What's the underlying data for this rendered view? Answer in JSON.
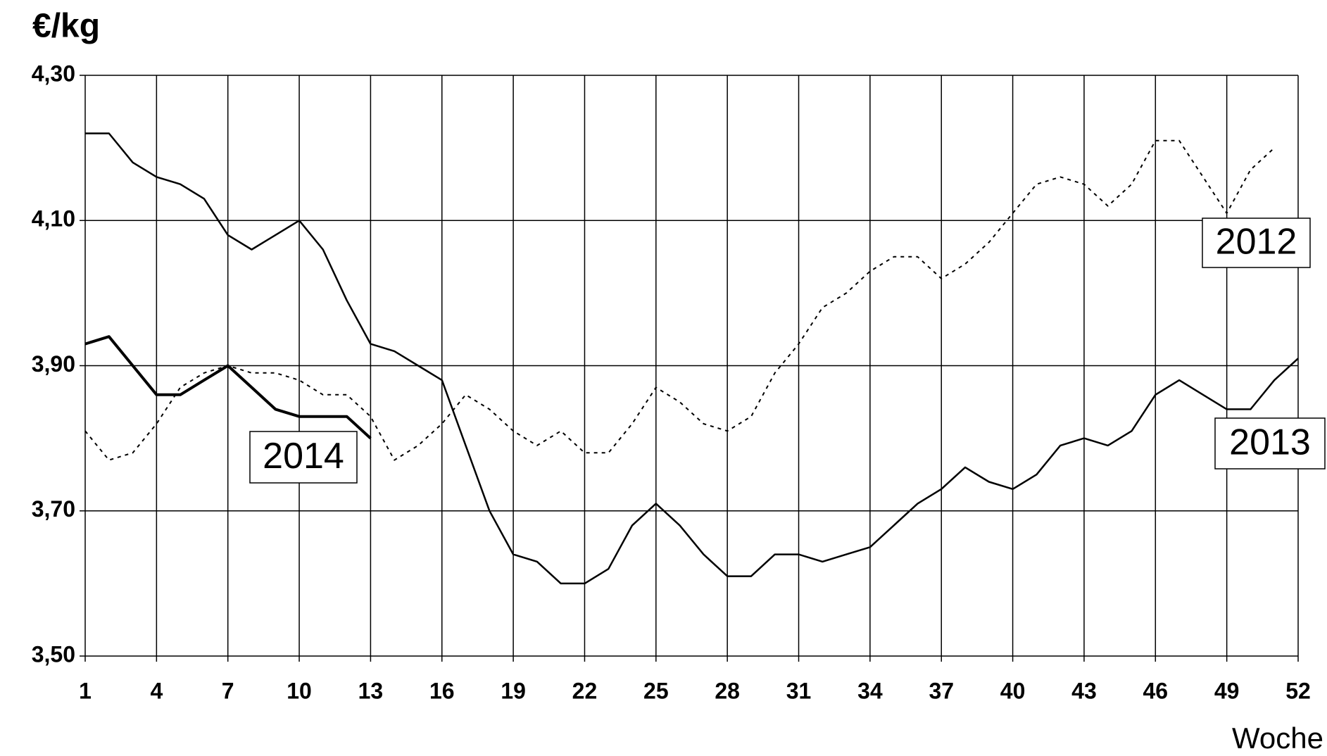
{
  "chart_data": {
    "type": "line",
    "ylabel": "€/kg",
    "xlabel": "Woche",
    "x": [
      1,
      2,
      3,
      4,
      5,
      6,
      7,
      8,
      9,
      10,
      11,
      12,
      13,
      14,
      15,
      16,
      17,
      18,
      19,
      20,
      21,
      22,
      23,
      24,
      25,
      26,
      27,
      28,
      29,
      30,
      31,
      32,
      33,
      34,
      35,
      36,
      37,
      38,
      39,
      40,
      41,
      42,
      43,
      44,
      45,
      46,
      47,
      48,
      49,
      50,
      51,
      52
    ],
    "xlim": [
      1,
      52
    ],
    "xticks": [
      1,
      4,
      7,
      10,
      13,
      16,
      19,
      22,
      25,
      28,
      31,
      34,
      37,
      40,
      43,
      46,
      49,
      52
    ],
    "ylim": [
      3.5,
      4.3
    ],
    "yticks": [
      {
        "value": 3.5,
        "label": "3,50"
      },
      {
        "value": 3.7,
        "label": "3,70"
      },
      {
        "value": 3.9,
        "label": "3,90"
      },
      {
        "value": 4.1,
        "label": "4,10"
      },
      {
        "value": 4.3,
        "label": "4,30"
      }
    ],
    "grid": true,
    "series": [
      {
        "name": "2012",
        "color": "#000000",
        "style": "dotted",
        "values": [
          3.81,
          3.77,
          3.78,
          3.82,
          3.87,
          3.89,
          3.9,
          3.89,
          3.89,
          3.88,
          3.86,
          3.86,
          3.83,
          3.77,
          3.79,
          3.82,
          3.86,
          3.84,
          3.81,
          3.79,
          3.81,
          3.78,
          3.78,
          3.82,
          3.87,
          3.85,
          3.82,
          3.81,
          3.83,
          3.89,
          3.93,
          3.98,
          4.0,
          4.03,
          4.05,
          4.05,
          4.02,
          4.04,
          4.07,
          4.11,
          4.15,
          4.16,
          4.15,
          4.12,
          4.15,
          4.21,
          4.21,
          4.16,
          4.11,
          4.17,
          4.2,
          null
        ]
      },
      {
        "name": "2013",
        "color": "#000000",
        "style": "solid",
        "values": [
          4.22,
          4.22,
          4.18,
          4.16,
          4.15,
          4.13,
          4.08,
          4.06,
          4.08,
          4.1,
          4.06,
          3.99,
          3.93,
          3.92,
          3.9,
          3.88,
          3.79,
          3.7,
          3.64,
          3.63,
          3.6,
          3.6,
          3.62,
          3.68,
          3.71,
          3.68,
          3.64,
          3.61,
          3.61,
          3.64,
          3.64,
          3.63,
          3.64,
          3.65,
          3.68,
          3.71,
          3.73,
          3.76,
          3.74,
          3.73,
          3.75,
          3.79,
          3.8,
          3.79,
          3.81,
          3.86,
          3.88,
          3.86,
          3.84,
          3.84,
          3.88,
          3.91
        ]
      },
      {
        "name": "2014",
        "color": "#000000",
        "style": "bold",
        "values": [
          3.93,
          3.94,
          3.9,
          3.86,
          3.86,
          3.88,
          3.9,
          3.87,
          3.84,
          3.83,
          3.83,
          3.83,
          3.8,
          null,
          null,
          null,
          null,
          null,
          null,
          null,
          null,
          null,
          null,
          null,
          null,
          null,
          null,
          null,
          null,
          null,
          null,
          null,
          null,
          null,
          null,
          null,
          null,
          null,
          null,
          null,
          null,
          null,
          null,
          null,
          null,
          null,
          null,
          null,
          null,
          null,
          null,
          null
        ]
      }
    ]
  }
}
